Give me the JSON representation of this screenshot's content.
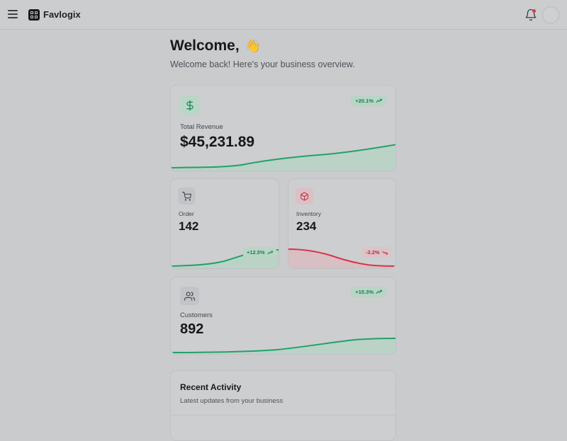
{
  "app": {
    "name": "Favlogix"
  },
  "header": {
    "menu_icon": "hamburger-menu-icon",
    "logo_icon": "grid-logo-icon",
    "notification_icon": "bell-icon",
    "notification_dot_color": "#d93a4c"
  },
  "page": {
    "title": "Welcome,",
    "title_emoji": "👋",
    "subtitle": "Welcome back! Here's your business overview."
  },
  "stats": {
    "revenue": {
      "label": "Total Revenue",
      "value": "$45,231.89",
      "change": "+20.1%",
      "trend": "up",
      "icon": "dollar-icon"
    },
    "order": {
      "label": "Order",
      "value": "142",
      "change": "+12.5%",
      "trend": "up",
      "icon": "cart-icon"
    },
    "inventory": {
      "label": "Inventory",
      "value": "234",
      "change": "-3.2%",
      "trend": "down",
      "icon": "box-icon"
    },
    "customers": {
      "label": "Customers",
      "value": "892",
      "change": "+15.3%",
      "trend": "up",
      "icon": "users-icon"
    }
  },
  "activity": {
    "title": "Recent Activity",
    "subtitle": "Latest updates from your business"
  },
  "colors": {
    "positive": "#22a06b",
    "negative": "#d8344a",
    "background": "#c9cbcd"
  }
}
